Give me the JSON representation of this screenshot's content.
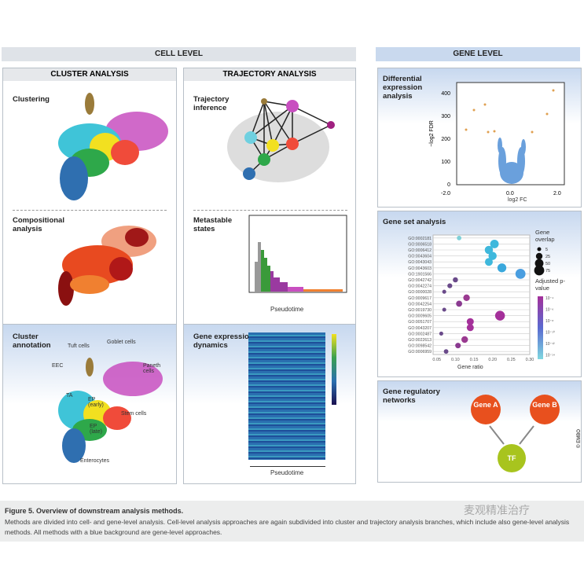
{
  "cell_level": {
    "title": "CELL LEVEL",
    "cluster": {
      "title": "CLUSTER ANALYSIS",
      "clustering": "Clustering",
      "compositional": "Compositional analysis",
      "annotation": "Cluster annotation",
      "cell_types": [
        "Tuft cells",
        "Goblet cells",
        "EEC",
        "Paneth cells",
        "TA",
        "EP (early)",
        "Stem cells",
        "EP (late)",
        "Enterocytes"
      ]
    },
    "trajectory": {
      "title": "TRAJECTORY ANALYSIS",
      "inference": "Trajectory inference",
      "metastable": "Metastable states",
      "pseudotime": "Pseudotime",
      "dynamics": "Gene expression dynamics",
      "pseudotime2": "Pseudotime"
    }
  },
  "gene_level": {
    "title": "GENE LEVEL",
    "de": {
      "title": "Differential expression analysis",
      "xlabel": "log2 FC",
      "ylabel": "−log2 FDR",
      "xticks": [
        "-2.0",
        "0.0",
        "2.0"
      ],
      "yticks": [
        "0",
        "100",
        "200",
        "300",
        "400"
      ]
    },
    "gsa": {
      "title": "Gene set analysis",
      "xlabel": "Gene ratio",
      "xticks": [
        "0.05",
        "0.10",
        "0.15",
        "0.20",
        "0.25",
        "0.30"
      ],
      "size_legend_title": "Gene overlap",
      "sizes": [
        "5",
        "25",
        "50",
        "75"
      ],
      "color_legend_title": "Adjusted p-value",
      "colors": [
        "10⁻⁴",
        "10⁻⁶",
        "10⁻⁸",
        "10⁻¹⁰",
        "10⁻¹²",
        "10⁻¹⁴"
      ]
    },
    "grn": {
      "title": "Gene regulatory networks",
      "gene_a": "Gene A",
      "gene_b": "Gene B",
      "tf": "TF"
    }
  },
  "chart_data": {
    "type": "scatter",
    "title": "Gene set analysis",
    "xlabel": "Gene ratio",
    "xlim": [
      0.04,
      0.3
    ],
    "terms": [
      "GO:0002181",
      "GO:0006518",
      "GO:0006412",
      "GO:0043604",
      "GO:0043043",
      "GO:0043603",
      "GO:1901566",
      "GO:0042742",
      "GO:0042274",
      "GO:0000028",
      "GO:0009617",
      "GO:0042254",
      "GO:0019730",
      "GO:0009605",
      "GO:0051707",
      "GO:0043207",
      "GO:0002487",
      "GO:0022613",
      "GO:0098542",
      "GO:0006959"
    ],
    "gene_ratio": [
      0.11,
      0.205,
      0.19,
      0.2,
      0.19,
      0.225,
      0.275,
      0.1,
      0.085,
      0.07,
      0.13,
      0.11,
      0.07,
      0.22,
      0.14,
      0.14,
      0.062,
      0.125,
      0.107,
      0.075
    ],
    "overlap": [
      8,
      50,
      45,
      45,
      40,
      55,
      75,
      12,
      10,
      5,
      25,
      20,
      5,
      70,
      30,
      30,
      5,
      25,
      15,
      8
    ],
    "color": [
      "#7fd0d8",
      "#3fb8dc",
      "#3fb8dc",
      "#3fb8dc",
      "#3fb8dc",
      "#3aa8dc",
      "#4a9ee0",
      "#6a4a8a",
      "#6a4a8a",
      "#6a4a8a",
      "#9a3a90",
      "#8a3a90",
      "#6a4a8a",
      "#a4309a",
      "#a4309a",
      "#a4309a",
      "#6a4a8a",
      "#9a3a90",
      "#8a3a90",
      "#6a4a8a"
    ]
  },
  "caption": {
    "title": "Figure 5.  Overview of downstream analysis methods.",
    "text": "Methods are divided into cell- and gene-level analysis. Cell-level analysis approaches are again subdivided into cluster and trajectory analysis branches, which include also gene-level analysis methods. All methods with a blue background are gene-level approaches.",
    "watermark": "麦观精准治疗"
  },
  "credit": "© EMBO"
}
